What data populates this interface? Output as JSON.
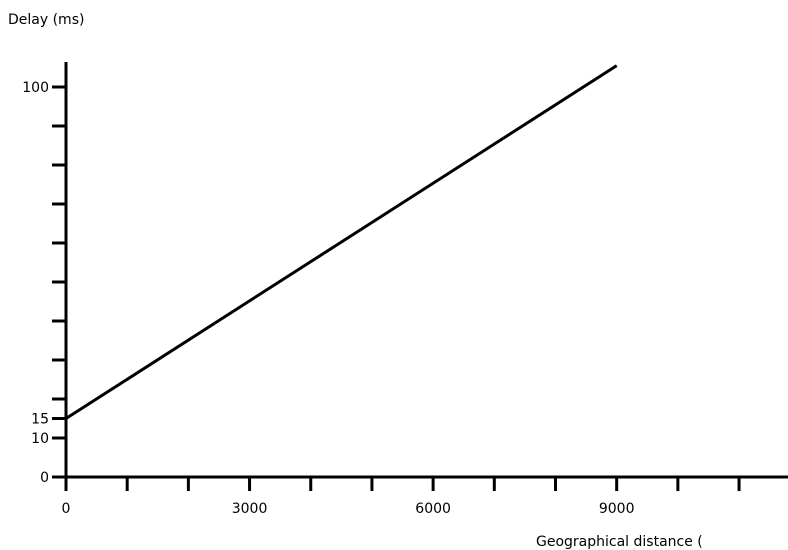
{
  "chart_data": {
    "type": "line",
    "title": "",
    "xlabel": "Geographical distance (",
    "ylabel": "Delay (ms)",
    "xlim": [
      0,
      11800
    ],
    "ylim": [
      0,
      100
    ],
    "x_ticks": [
      0,
      1000,
      2000,
      3000,
      4000,
      5000,
      6000,
      7000,
      8000,
      9000,
      10000,
      11000
    ],
    "x_tick_labels": [
      {
        "value": 0,
        "label": "0"
      },
      {
        "value": 3000,
        "label": "3000"
      },
      {
        "value": 6000,
        "label": "6000"
      },
      {
        "value": 9000,
        "label": "9000"
      }
    ],
    "y_ticks": [
      0,
      10,
      15,
      20,
      30,
      40,
      50,
      60,
      70,
      80,
      90,
      100
    ],
    "y_tick_labels": [
      {
        "value": 0,
        "label": "0"
      },
      {
        "value": 10,
        "label": "10"
      },
      {
        "value": 15,
        "label": "15"
      },
      {
        "value": 100,
        "label": "100"
      }
    ],
    "grid": false,
    "series": [
      {
        "x": [
          0,
          9000
        ],
        "y": [
          15,
          105.5
        ]
      }
    ]
  }
}
